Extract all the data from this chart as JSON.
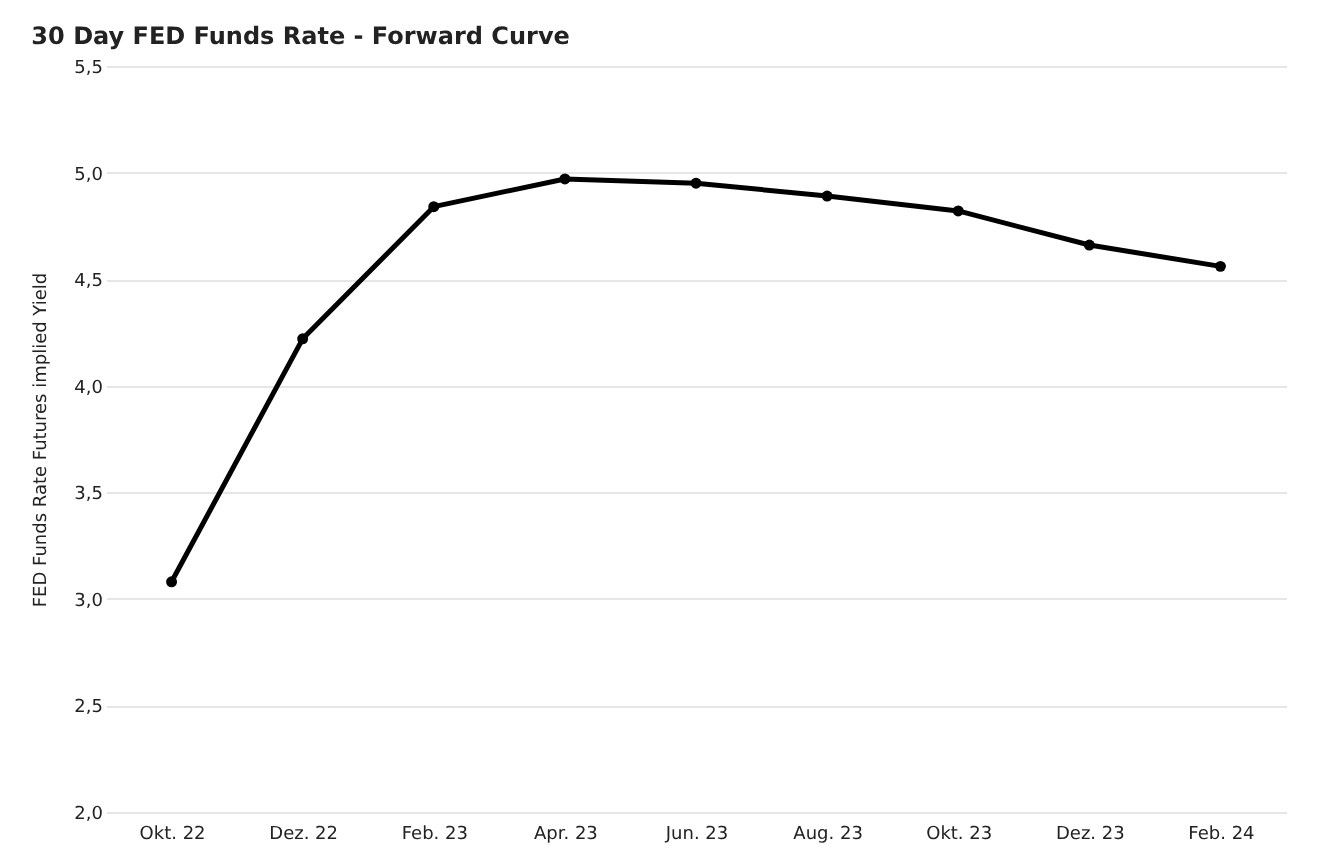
{
  "chart_data": {
    "type": "line",
    "title": "30 Day FED Funds Rate - Forward Curve",
    "ylabel": "FED Funds Rate Futures  implied Yield",
    "categories": [
      "Okt. 22",
      "Dez. 22",
      "Feb. 23",
      "Apr. 23",
      "Jun. 23",
      "Aug. 23",
      "Okt. 23",
      "Dez. 23",
      "Feb. 24"
    ],
    "series": [
      {
        "color": "#000000",
        "values": [
          3.08,
          4.22,
          4.84,
          4.97,
          4.95,
          4.89,
          4.82,
          4.66,
          4.56
        ]
      }
    ],
    "ylim": [
      2.0,
      5.5
    ],
    "yticks": [
      {
        "value": 2.0,
        "label": "2,0"
      },
      {
        "value": 2.5,
        "label": "2,5"
      },
      {
        "value": 3.0,
        "label": "3,0"
      },
      {
        "value": 3.5,
        "label": "3,5"
      },
      {
        "value": 4.0,
        "label": "4,0"
      },
      {
        "value": 4.5,
        "label": "4,5"
      },
      {
        "value": 5.0,
        "label": "5,0"
      },
      {
        "value": 5.5,
        "label": "5,5"
      }
    ],
    "grid": "y",
    "marker": "circle",
    "line_style": "solid"
  }
}
